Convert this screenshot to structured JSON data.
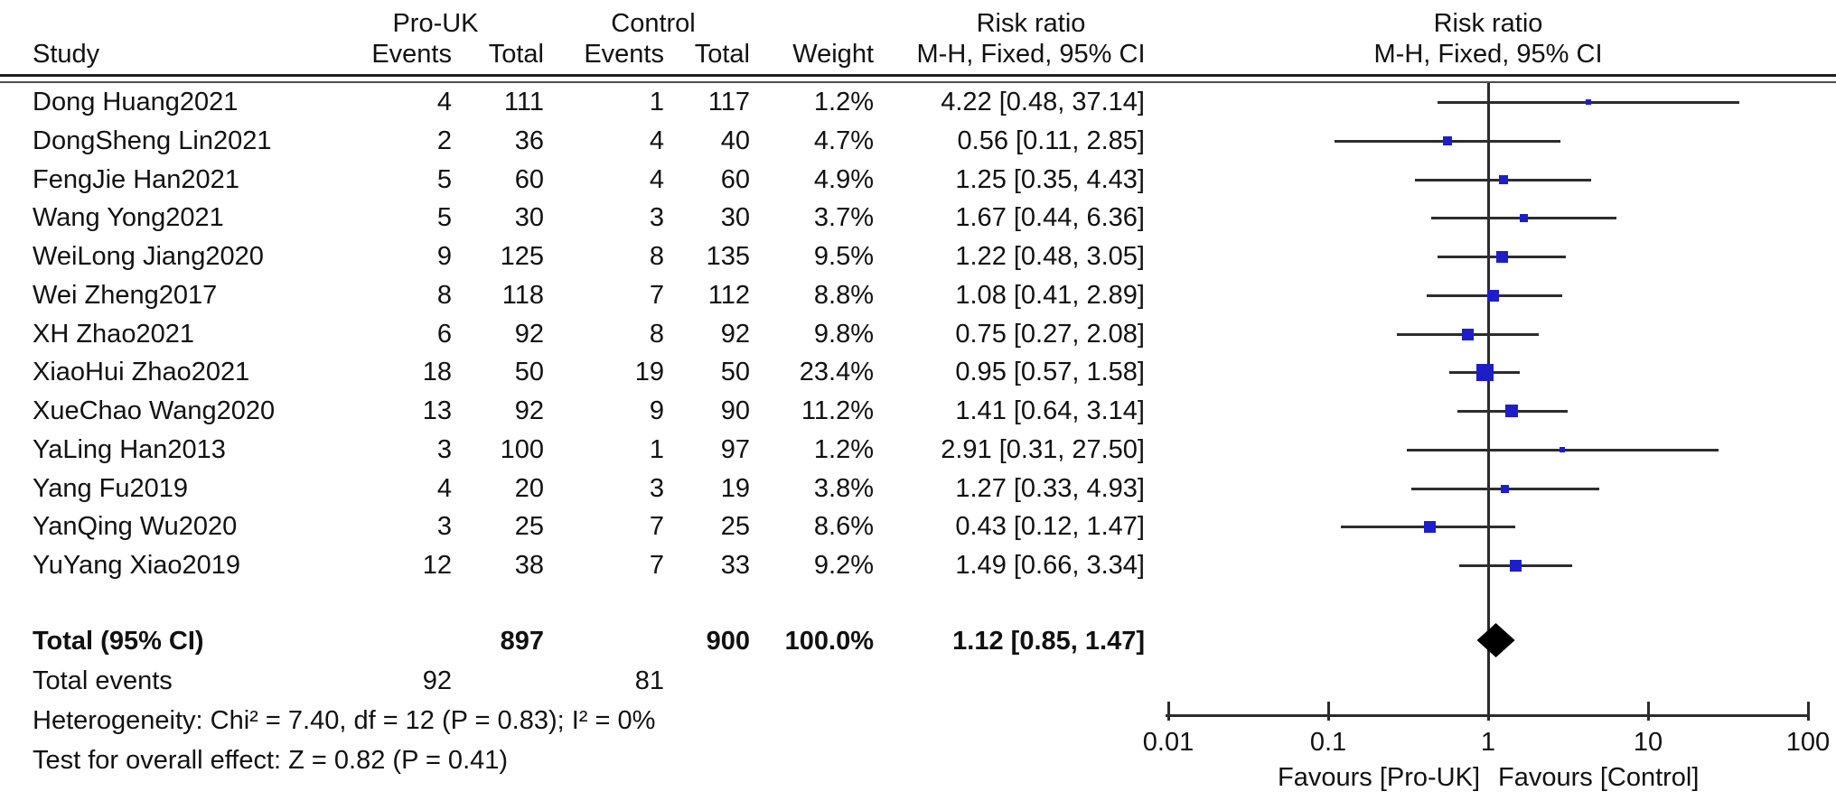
{
  "header": {
    "study": "Study",
    "group_experimental": "Pro-UK",
    "group_control": "Control",
    "events": "Events",
    "total": "Total",
    "weight": "Weight",
    "risk_ratio": "Risk ratio",
    "method_ci": "M-H, Fixed, 95% CI"
  },
  "chart_data": {
    "type": "forest",
    "effect_measure": "Risk ratio (M-H, Fixed, 95% CI)",
    "studies": [
      {
        "study": "Dong Huang2021",
        "pro_events": 4,
        "pro_total": 111,
        "ctrl_events": 1,
        "ctrl_total": 117,
        "weight": "1.2%",
        "weight_pct": 1.2,
        "rr": 4.22,
        "ci_low": 0.48,
        "ci_high": 37.14,
        "rr_text": "4.22 [0.48, 37.14]"
      },
      {
        "study": "DongSheng Lin2021",
        "pro_events": 2,
        "pro_total": 36,
        "ctrl_events": 4,
        "ctrl_total": 40,
        "weight": "4.7%",
        "weight_pct": 4.7,
        "rr": 0.56,
        "ci_low": 0.11,
        "ci_high": 2.85,
        "rr_text": "0.56 [0.11, 2.85]"
      },
      {
        "study": "FengJie Han2021",
        "pro_events": 5,
        "pro_total": 60,
        "ctrl_events": 4,
        "ctrl_total": 60,
        "weight": "4.9%",
        "weight_pct": 4.9,
        "rr": 1.25,
        "ci_low": 0.35,
        "ci_high": 4.43,
        "rr_text": "1.25 [0.35, 4.43]"
      },
      {
        "study": "Wang Yong2021",
        "pro_events": 5,
        "pro_total": 30,
        "ctrl_events": 3,
        "ctrl_total": 30,
        "weight": "3.7%",
        "weight_pct": 3.7,
        "rr": 1.67,
        "ci_low": 0.44,
        "ci_high": 6.36,
        "rr_text": "1.67 [0.44, 6.36]"
      },
      {
        "study": "WeiLong Jiang2020",
        "pro_events": 9,
        "pro_total": 125,
        "ctrl_events": 8,
        "ctrl_total": 135,
        "weight": "9.5%",
        "weight_pct": 9.5,
        "rr": 1.22,
        "ci_low": 0.48,
        "ci_high": 3.05,
        "rr_text": "1.22 [0.48, 3.05]"
      },
      {
        "study": "Wei Zheng2017",
        "pro_events": 8,
        "pro_total": 118,
        "ctrl_events": 7,
        "ctrl_total": 112,
        "weight": "8.8%",
        "weight_pct": 8.8,
        "rr": 1.08,
        "ci_low": 0.41,
        "ci_high": 2.89,
        "rr_text": "1.08 [0.41, 2.89]"
      },
      {
        "study": "XH Zhao2021",
        "pro_events": 6,
        "pro_total": 92,
        "ctrl_events": 8,
        "ctrl_total": 92,
        "weight": "9.8%",
        "weight_pct": 9.8,
        "rr": 0.75,
        "ci_low": 0.27,
        "ci_high": 2.08,
        "rr_text": "0.75 [0.27, 2.08]"
      },
      {
        "study": "XiaoHui Zhao2021",
        "pro_events": 18,
        "pro_total": 50,
        "ctrl_events": 19,
        "ctrl_total": 50,
        "weight": "23.4%",
        "weight_pct": 23.4,
        "rr": 0.95,
        "ci_low": 0.57,
        "ci_high": 1.58,
        "rr_text": "0.95 [0.57, 1.58]"
      },
      {
        "study": "XueChao Wang2020",
        "pro_events": 13,
        "pro_total": 92,
        "ctrl_events": 9,
        "ctrl_total": 90,
        "weight": "11.2%",
        "weight_pct": 11.2,
        "rr": 1.41,
        "ci_low": 0.64,
        "ci_high": 3.14,
        "rr_text": "1.41 [0.64, 3.14]"
      },
      {
        "study": "YaLing Han2013",
        "pro_events": 3,
        "pro_total": 100,
        "ctrl_events": 1,
        "ctrl_total": 97,
        "weight": "1.2%",
        "weight_pct": 1.2,
        "rr": 2.91,
        "ci_low": 0.31,
        "ci_high": 27.5,
        "rr_text": "2.91 [0.31, 27.50]"
      },
      {
        "study": "Yang Fu2019",
        "pro_events": 4,
        "pro_total": 20,
        "ctrl_events": 3,
        "ctrl_total": 19,
        "weight": "3.8%",
        "weight_pct": 3.8,
        "rr": 1.27,
        "ci_low": 0.33,
        "ci_high": 4.93,
        "rr_text": "1.27 [0.33, 4.93]"
      },
      {
        "study": "YanQing Wu2020",
        "pro_events": 3,
        "pro_total": 25,
        "ctrl_events": 7,
        "ctrl_total": 25,
        "weight": "8.6%",
        "weight_pct": 8.6,
        "rr": 0.43,
        "ci_low": 0.12,
        "ci_high": 1.47,
        "rr_text": "0.43 [0.12, 1.47]"
      },
      {
        "study": "YuYang Xiao2019",
        "pro_events": 12,
        "pro_total": 38,
        "ctrl_events": 7,
        "ctrl_total": 33,
        "weight": "9.2%",
        "weight_pct": 9.2,
        "rr": 1.49,
        "ci_low": 0.66,
        "ci_high": 3.34,
        "rr_text": "1.49 [0.66, 3.34]"
      }
    ],
    "summary": {
      "label": "Total (95% CI)",
      "pro_total": "897",
      "ctrl_total": "900",
      "weight": "100.0%",
      "rr": 1.12,
      "ci_low": 0.85,
      "ci_high": 1.47,
      "rr_text": "1.12 [0.85, 1.47]"
    },
    "total_events": {
      "label": "Total events",
      "pro": "92",
      "ctrl": "81"
    },
    "footnotes": {
      "heterogeneity": "Heterogeneity: Chi² = 7.40, df = 12 (P = 0.83); I² = 0%",
      "overall_effect": "Test for overall effect: Z = 0.82 (P = 0.41)"
    },
    "axis": {
      "scale": "log",
      "min": 0.01,
      "max": 100,
      "ticks": [
        "0.01",
        "0.1",
        "1",
        "10",
        "100"
      ],
      "favours_left": "Favours [Pro-UK]",
      "favours_right": "Favours [Control]"
    },
    "colors": {
      "marker": "#1e1ec8",
      "ci_line": "#2d2d2d",
      "diamond": "#000000",
      "text": "#111111"
    }
  }
}
